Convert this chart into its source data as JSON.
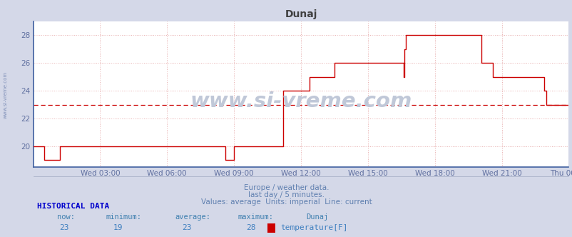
{
  "title": "Dunaj",
  "title_color": "#404040",
  "bg_color": "#d4d8e8",
  "plot_bg_color": "#ffffff",
  "line_color": "#cc0000",
  "avg_line_color": "#cc0000",
  "avg_value": 23,
  "ylim": [
    18.5,
    29.0
  ],
  "yticks": [
    20,
    22,
    24,
    26,
    28
  ],
  "tick_label_color": "#6070a0",
  "grid_color": "#e8b0b0",
  "grid_style": ":",
  "watermark": "www.si-vreme.com",
  "watermark_color": "#c0c8d8",
  "footer_line1": "Europe / weather data.",
  "footer_line2": "last day / 5 minutes.",
  "footer_line3": "Values: average  Units: imperial  Line: current",
  "footer_color": "#6080b0",
  "hist_label": "HISTORICAL DATA",
  "hist_color": "#0000cc",
  "stats_label_color": "#4080b0",
  "stats_value_color": "#4080c0",
  "now_val": 23,
  "min_val": 19,
  "avg_stat": 23,
  "max_val": 28,
  "station": "Dunaj",
  "measure": "temperature[F]",
  "x_labels": [
    "Wed 03:00",
    "Wed 06:00",
    "Wed 09:00",
    "Wed 12:00",
    "Wed 15:00",
    "Wed 18:00",
    "Wed 21:00",
    "Thu 00:00"
  ],
  "x_positions": [
    3,
    6,
    9,
    12,
    15,
    18,
    21,
    24
  ],
  "time_series": [
    [
      0,
      20
    ],
    [
      0.5,
      19
    ],
    [
      1.0,
      19
    ],
    [
      1.2,
      20
    ],
    [
      8.5,
      20
    ],
    [
      8.6,
      19
    ],
    [
      8.8,
      19
    ],
    [
      9.0,
      20
    ],
    [
      11.0,
      20
    ],
    [
      11.2,
      24
    ],
    [
      12.0,
      24
    ],
    [
      12.4,
      25
    ],
    [
      13.2,
      25
    ],
    [
      13.5,
      26
    ],
    [
      14.4,
      26
    ],
    [
      14.5,
      26
    ],
    [
      14.9,
      26
    ],
    [
      15.2,
      26
    ],
    [
      15.3,
      26
    ],
    [
      16.5,
      26
    ],
    [
      16.6,
      25
    ],
    [
      16.65,
      27
    ],
    [
      16.7,
      28
    ],
    [
      20.0,
      28
    ],
    [
      20.1,
      26
    ],
    [
      20.5,
      26
    ],
    [
      20.6,
      25
    ],
    [
      22.8,
      25
    ],
    [
      22.9,
      24
    ],
    [
      23.0,
      23
    ],
    [
      24.0,
      23
    ]
  ]
}
